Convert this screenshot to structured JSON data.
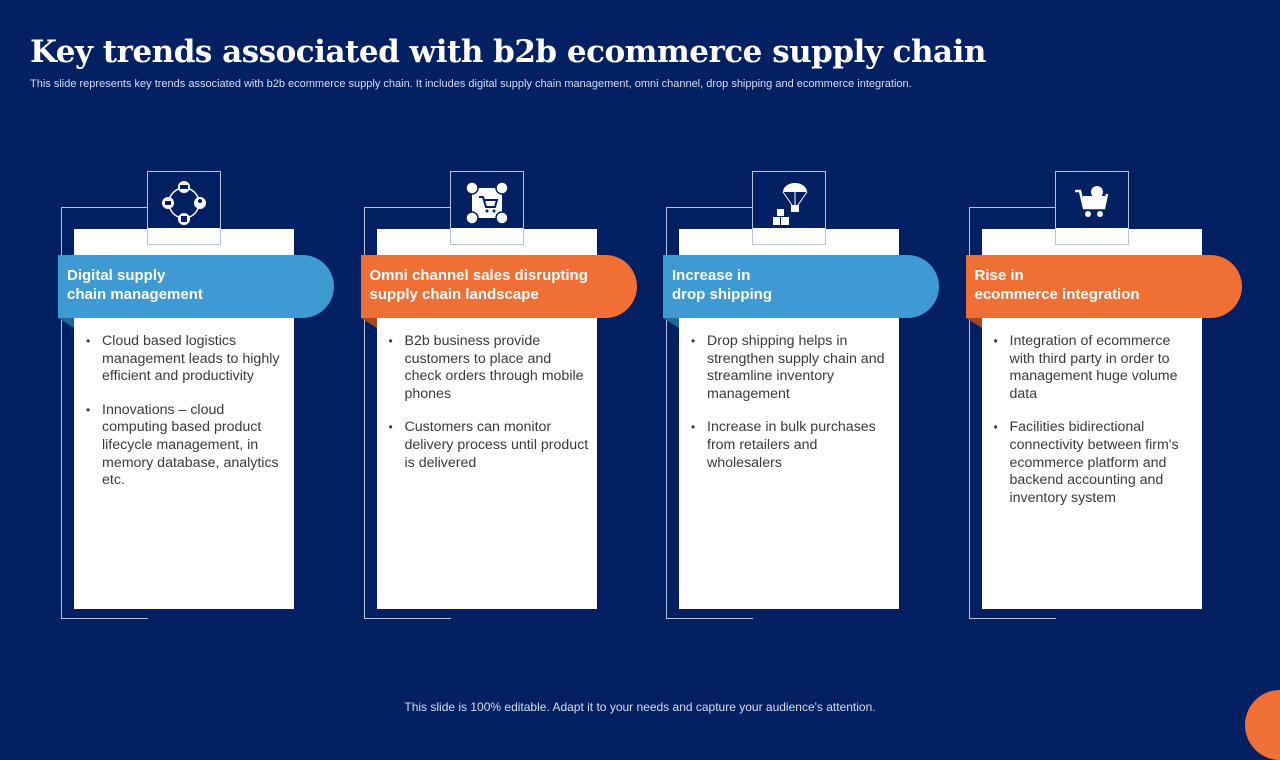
{
  "title": "Key trends associated with b2b ecommerce supply chain",
  "subtitle": "This slide represents key trends associated with b2b ecommerce supply chain. It includes digital supply chain management, omni channel, drop shipping and ecommerce integration.",
  "footer": "This slide is 100% editable. Adapt it to your needs and capture your audience's attention.",
  "colors": {
    "background": "#022062",
    "blue": "#3d9ad3",
    "orange": "#ef6f34"
  },
  "cards": [
    {
      "icon": "supply-chain-cycle-icon",
      "color": "blue",
      "heading_l1": "Digital supply",
      "heading_l2": "chain management",
      "bullets": [
        "Cloud based logistics management leads to highly efficient and productivity",
        "Innovations – cloud computing based product lifecycle management, in memory database, analytics etc."
      ]
    },
    {
      "icon": "omni-channel-cart-icon",
      "color": "orange",
      "heading_l1": "Omni channel sales disrupting",
      "heading_l2": "supply chain landscape",
      "bullets": [
        "B2b business provide customers to place and check orders through mobile phones",
        "Customers can monitor delivery process until product is delivered"
      ]
    },
    {
      "icon": "parachute-boxes-icon",
      "color": "blue",
      "heading_l1": "Increase in",
      "heading_l2": "drop shipping",
      "bullets": [
        "Drop shipping helps in strengthen supply chain and streamline inventory management",
        "Increase in bulk purchases from retailers and wholesalers"
      ]
    },
    {
      "icon": "cart-gear-icon",
      "color": "orange",
      "heading_l1": "Rise in",
      "heading_l2": "ecommerce integration",
      "bullets": [
        "Integration of ecommerce with third party in order to management huge volume data",
        "Facilities bidirectional connectivity between firm's ecommerce platform and backend accounting and inventory system"
      ]
    }
  ]
}
